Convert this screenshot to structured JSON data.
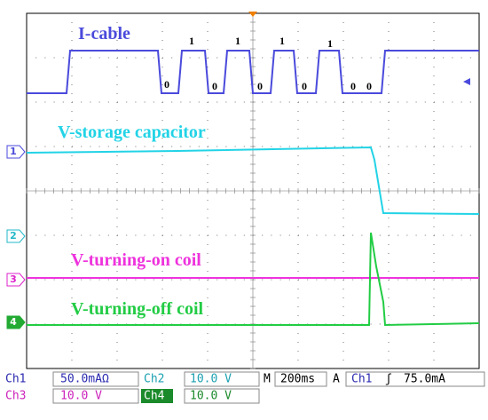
{
  "traces": [
    {
      "label": "I-cable",
      "bits": [
        "0",
        "1",
        "0",
        "1",
        "0",
        "1",
        "0",
        "1",
        "0",
        "0"
      ]
    },
    {
      "label": "V-storage capacitor"
    },
    {
      "label": "V-turning-on coil"
    },
    {
      "label": "V-turning-off coil"
    }
  ],
  "channel_markers": [
    "1",
    "2",
    "3",
    "4"
  ],
  "status": {
    "row1": {
      "ch1": "Ch1",
      "ch1_scale": "50.0mAΩ",
      "ch2": "Ch2",
      "ch2_scale": "10.0 V",
      "m": "M",
      "timebase": "200ms",
      "a": "A",
      "trig_source": "Ch1",
      "slope": "ʃ",
      "trig_level": "75.0mA"
    },
    "row2": {
      "ch3": "Ch3",
      "ch3_scale": "10.0 V",
      "ch4": "Ch4",
      "ch4_scale": "10.0 V"
    }
  }
}
